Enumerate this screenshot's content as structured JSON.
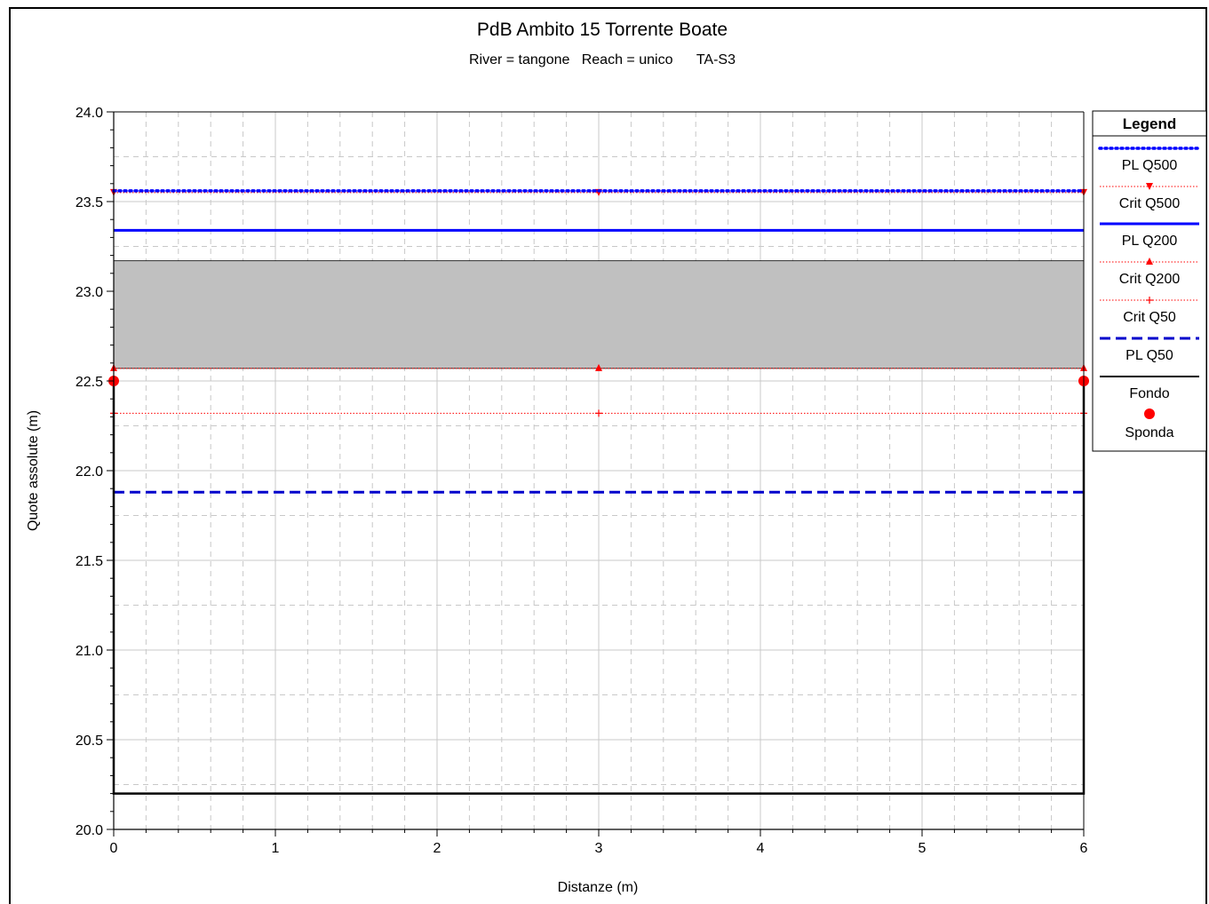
{
  "chart_data": {
    "type": "line",
    "title": "PdB Ambito 15 Torrente Boate",
    "subtitle": "River = tangone   Reach = unico      TA-S3",
    "xlabel": "Distanze (m)",
    "ylabel": "Quote assolute (m)",
    "xlim": [
      0,
      6
    ],
    "ylim": [
      20.0,
      24.0
    ],
    "x_ticks": [
      "0",
      "1",
      "2",
      "3",
      "4",
      "5",
      "6"
    ],
    "y_ticks": [
      "20.0",
      "20.5",
      "21.0",
      "21.5",
      "22.0",
      "22.5",
      "23.0",
      "23.5",
      "24.0"
    ],
    "grid": true,
    "legend_title": "Legend",
    "legend_position": "right",
    "shaded_band": {
      "y_low": 22.57,
      "y_high": 23.17,
      "color": "#c0c0c0"
    },
    "series": [
      {
        "name": "PL Q500",
        "style": "dotted",
        "color": "#0000ff",
        "x": [
          0,
          6
        ],
        "y": [
          23.56,
          23.56
        ]
      },
      {
        "name": "Crit Q500",
        "style": "thin-dotted-triangle-down",
        "color": "#ff0000",
        "x": [
          0,
          3,
          6
        ],
        "y": [
          23.55,
          23.55,
          23.55
        ]
      },
      {
        "name": "PL Q200",
        "style": "solid-thick",
        "color": "#0000ff",
        "x": [
          0,
          6
        ],
        "y": [
          23.34,
          23.34
        ]
      },
      {
        "name": "Crit Q200",
        "style": "thin-dotted-triangle-up",
        "color": "#ff0000",
        "x": [
          0,
          3,
          6
        ],
        "y": [
          22.57,
          22.57,
          22.57
        ]
      },
      {
        "name": "Crit Q50",
        "style": "thin-dotted-plus",
        "color": "#ff0000",
        "x": [
          0,
          3,
          6
        ],
        "y": [
          22.32,
          22.32,
          22.32
        ]
      },
      {
        "name": "PL Q50",
        "style": "dashed",
        "color": "#0000cc",
        "x": [
          0,
          6
        ],
        "y": [
          21.88,
          21.88
        ]
      },
      {
        "name": "Fondo",
        "style": "solid-black",
        "color": "#000000",
        "x": [
          0,
          0,
          6,
          6
        ],
        "y": [
          22.5,
          20.2,
          20.2,
          22.5
        ]
      },
      {
        "name": "Sponda",
        "style": "marker-circle",
        "color": "#ff0000",
        "x": [
          0,
          6
        ],
        "y": [
          22.5,
          22.5
        ]
      }
    ]
  }
}
